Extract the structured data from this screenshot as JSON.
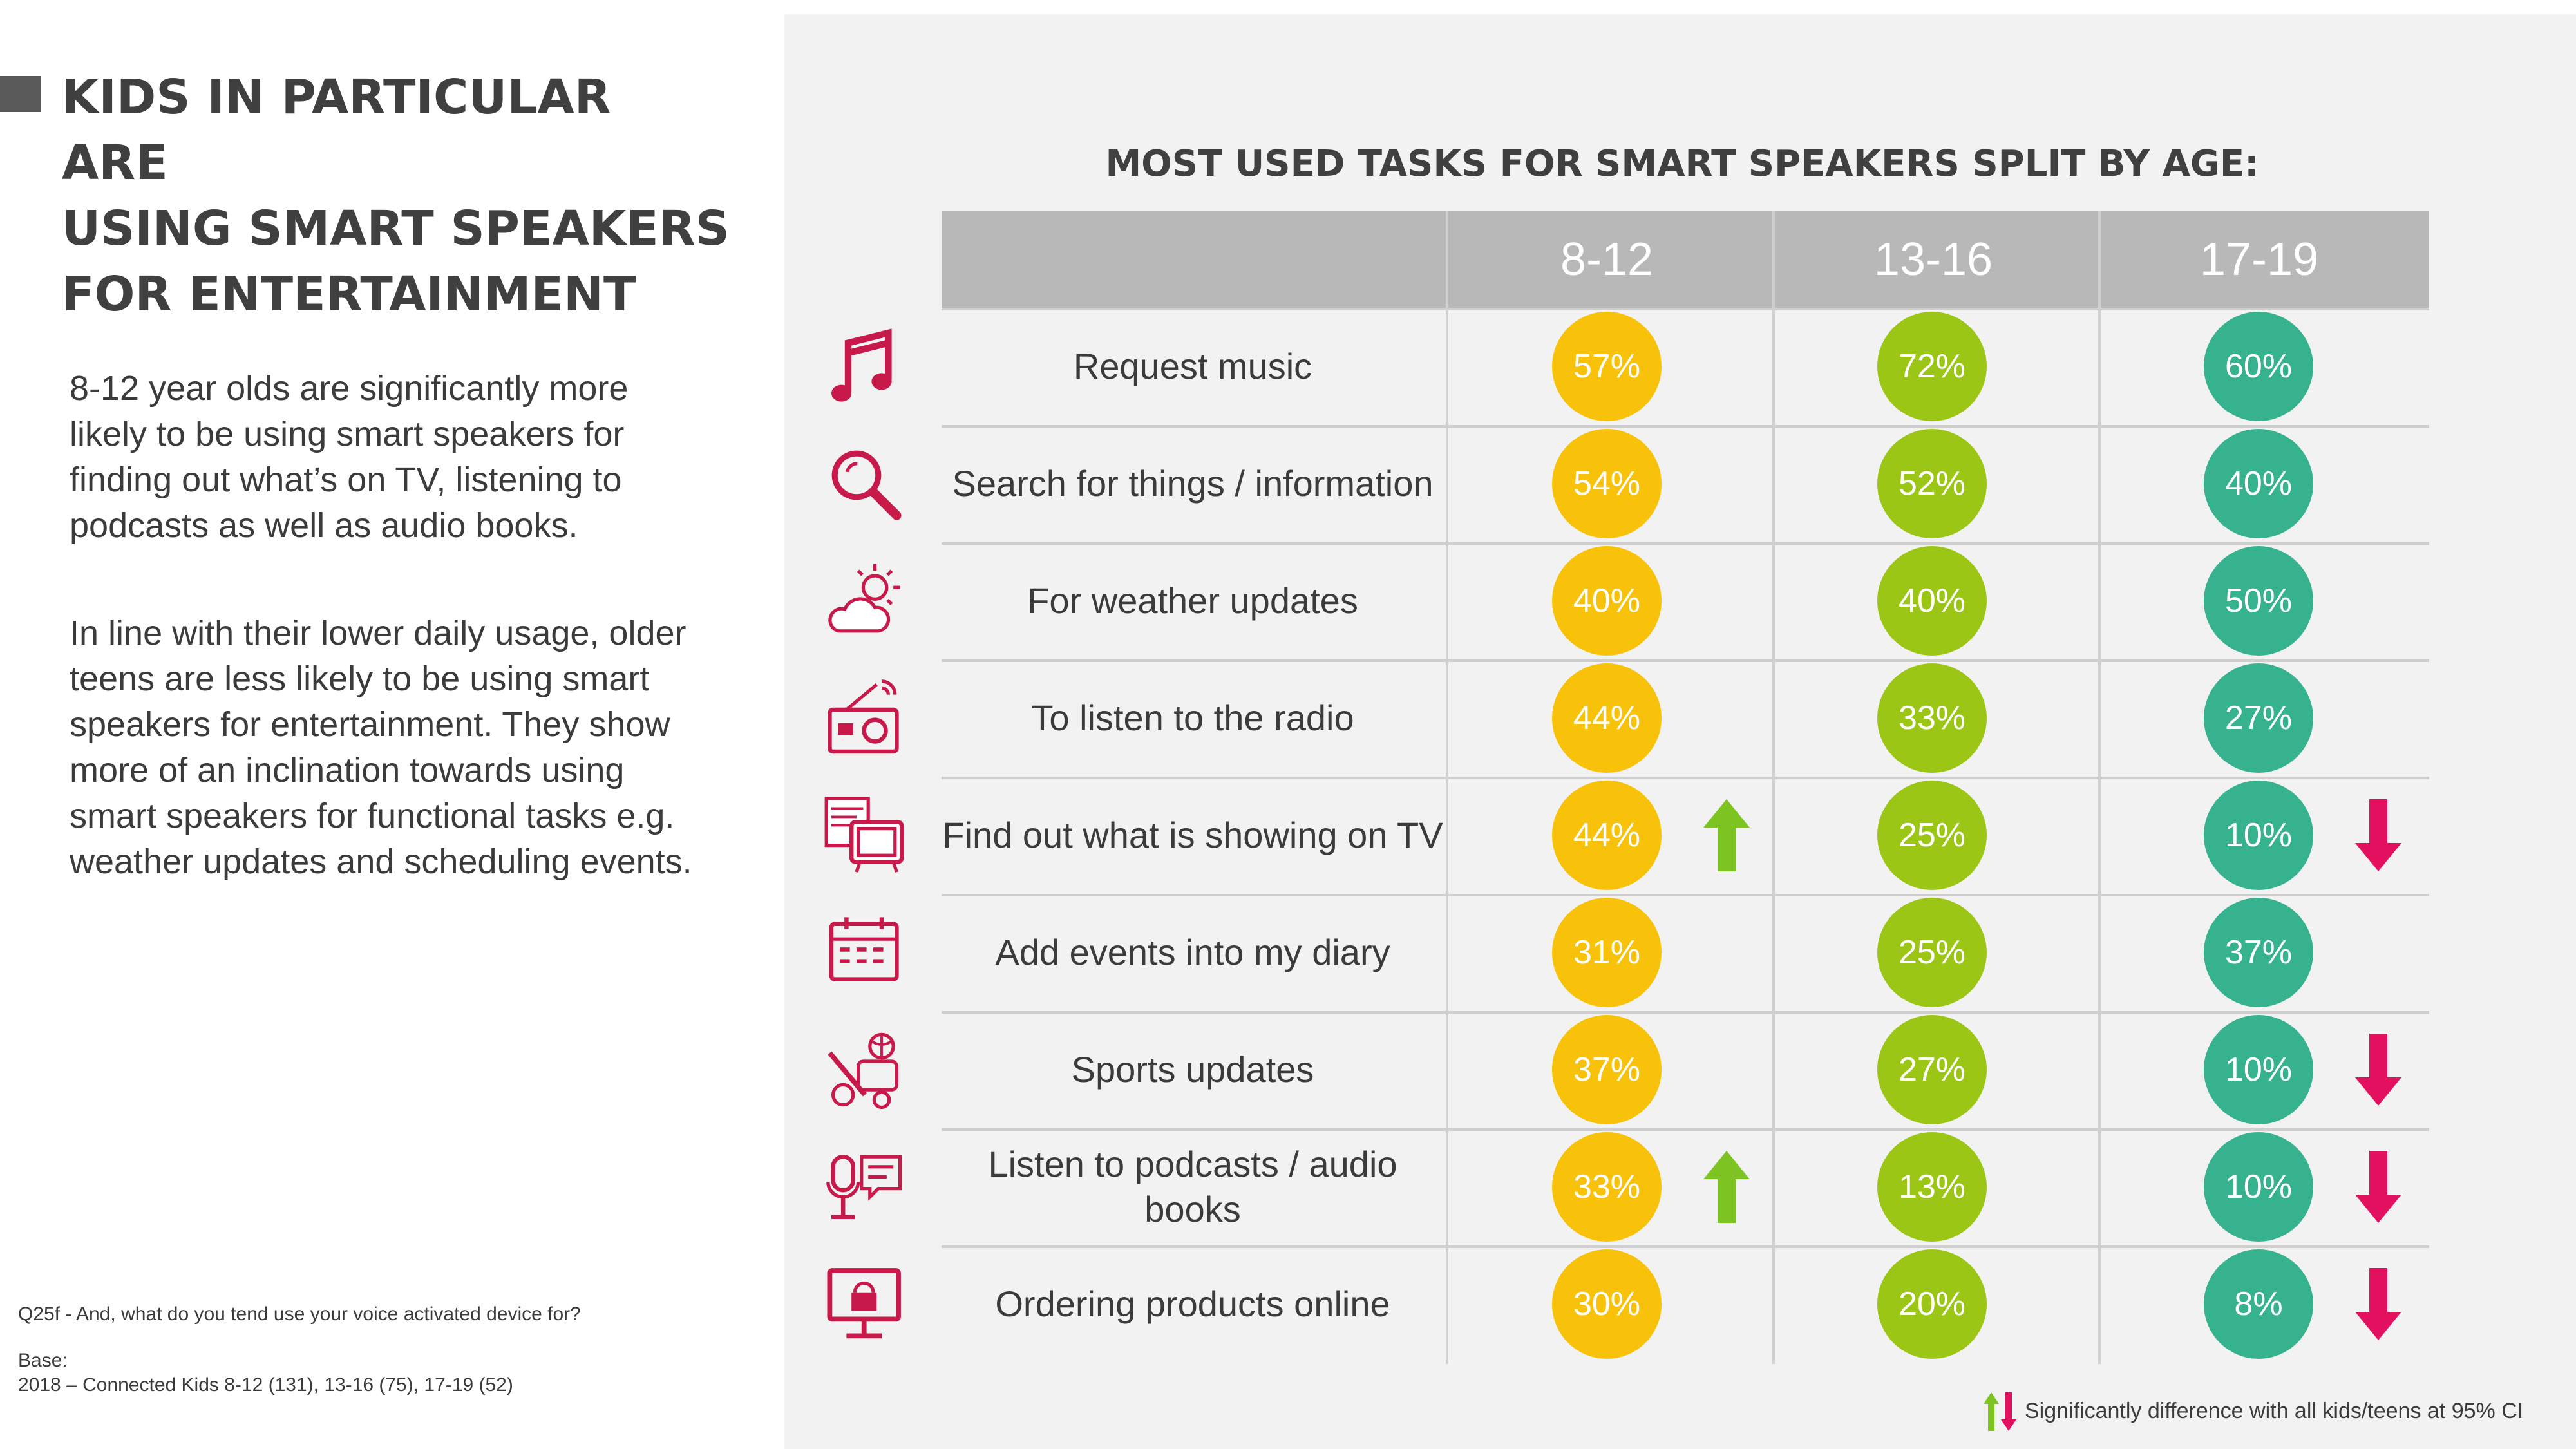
{
  "title_lines": [
    "KIDS IN PARTICULAR ARE",
    "USING SMART SPEAKERS",
    "FOR ENTERTAINMENT"
  ],
  "body": {
    "p1": "8-12 year olds are significantly more likely to be using smart speakers for finding out what’s on TV, listening to podcasts as well as audio books.",
    "p2": "In line with their lower daily usage, older teens are less likely to be using smart speakers for entertainment. They show more of an inclination towards using smart speakers for functional tasks e.g. weather updates and scheduling events."
  },
  "footnote": {
    "question": "Q25f - And, what do you tend use your voice activated device for?",
    "base_label": "Base:",
    "base_detail": "2018 – Connected Kids 8-12 (131), 13-16 (75), 17-19 (52)"
  },
  "legend_text": "Significantly difference with all kids/teens at 95% CI",
  "colors": {
    "age_8_12": "#f9c20a",
    "age_13_16": "#9cc615",
    "age_17_19": "#36b38e",
    "arrow_up": "#7dc423",
    "arrow_down": "#e3105f",
    "icon": "#c8194b"
  },
  "chart_data": {
    "type": "table",
    "title": "MOST USED TASKS FOR SMART SPEAKERS SPLIT BY AGE:",
    "columns": [
      "8-12",
      "13-16",
      "17-19"
    ],
    "unit": "%",
    "rows": [
      {
        "task": "Request music",
        "icon": "music-note-icon",
        "values": [
          57,
          72,
          60
        ],
        "sig": [
          null,
          null,
          null
        ]
      },
      {
        "task": "Search for things / information",
        "icon": "magnifier-icon",
        "values": [
          54,
          52,
          40
        ],
        "sig": [
          null,
          null,
          null
        ]
      },
      {
        "task": "For weather updates",
        "icon": "sun-cloud-icon",
        "values": [
          40,
          40,
          50
        ],
        "sig": [
          null,
          null,
          null
        ]
      },
      {
        "task": "To listen to the radio",
        "icon": "radio-icon",
        "values": [
          44,
          33,
          27
        ],
        "sig": [
          null,
          null,
          null
        ]
      },
      {
        "task": "Find out what is showing on TV",
        "icon": "tv-guide-icon",
        "values": [
          44,
          25,
          10
        ],
        "sig": [
          "up",
          null,
          "down"
        ]
      },
      {
        "task": "Add events into my diary",
        "icon": "calendar-icon",
        "values": [
          31,
          25,
          37
        ],
        "sig": [
          null,
          null,
          null
        ]
      },
      {
        "task": "Sports updates",
        "icon": "sports-icon",
        "values": [
          37,
          27,
          10
        ],
        "sig": [
          null,
          null,
          "down"
        ]
      },
      {
        "task": "Listen to podcasts / audio books",
        "icon": "microphone-icon",
        "values": [
          33,
          13,
          10
        ],
        "sig": [
          "up",
          null,
          "down"
        ]
      },
      {
        "task": "Ordering products online",
        "icon": "online-shop-icon",
        "values": [
          30,
          20,
          8
        ],
        "sig": [
          null,
          null,
          "down"
        ]
      }
    ]
  }
}
